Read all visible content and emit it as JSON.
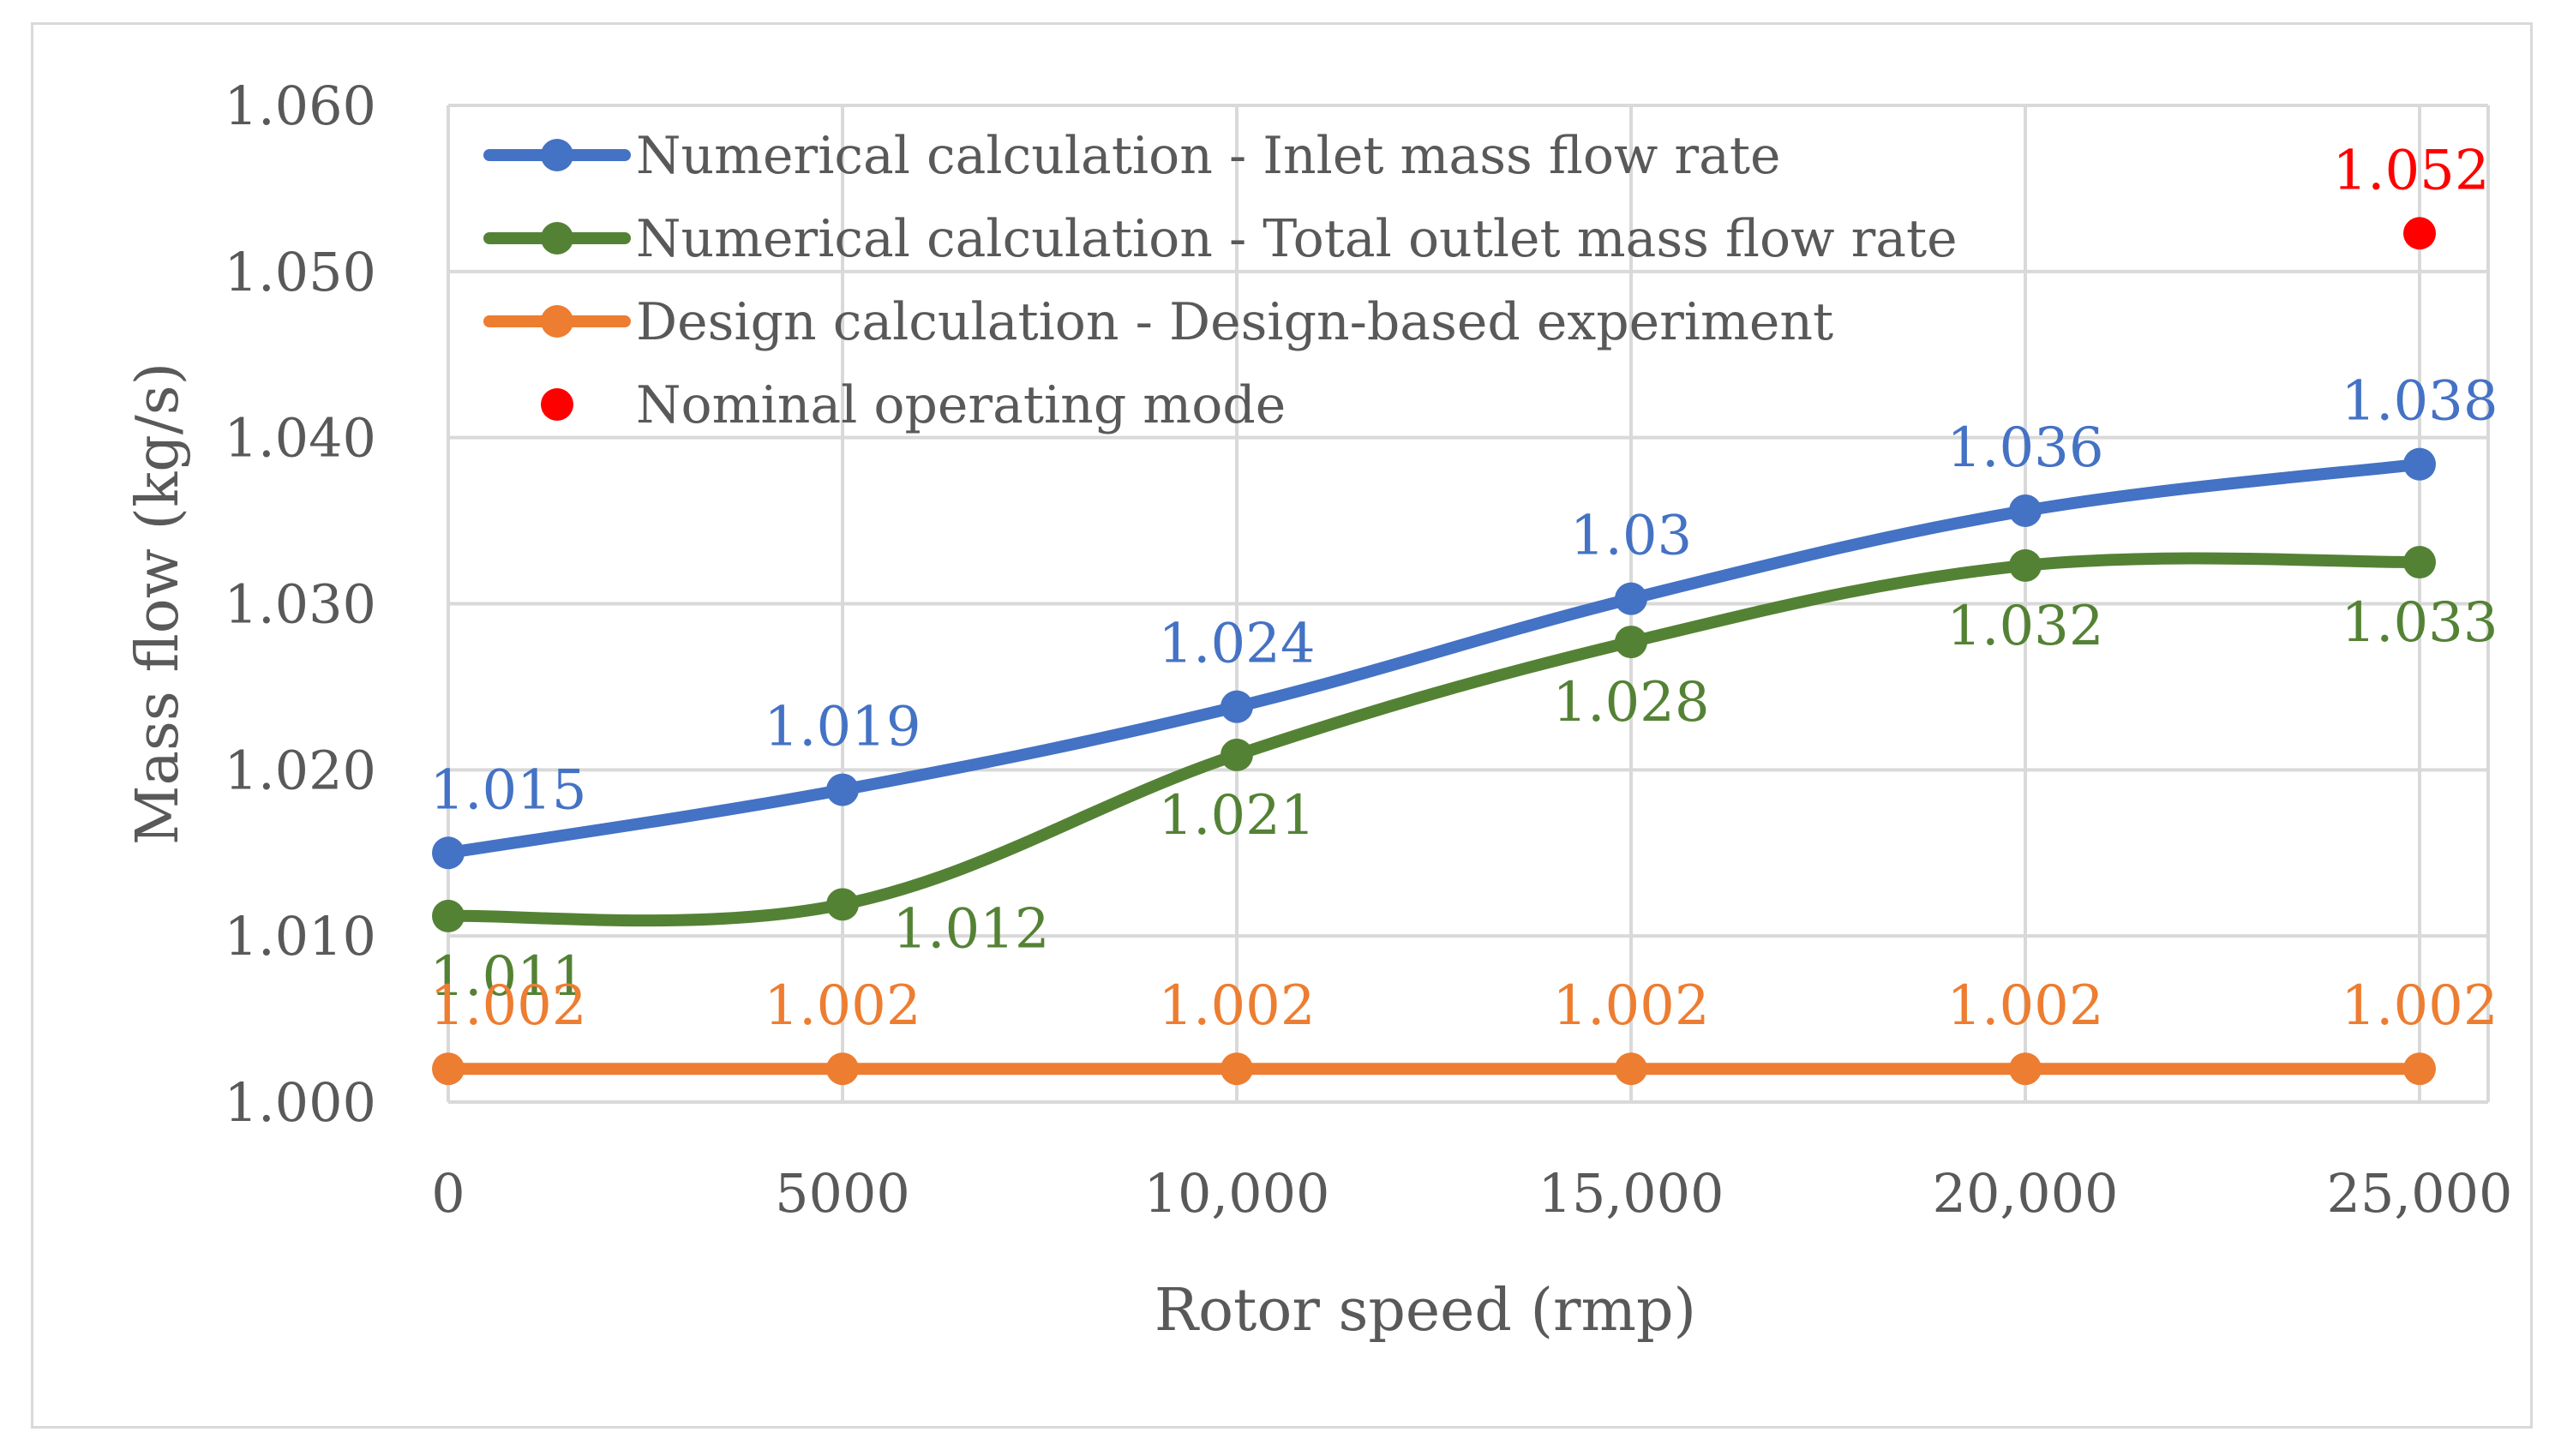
{
  "chart_data": {
    "type": "line",
    "xlabel": "Rotor speed (rmp)",
    "ylabel": "Mass flow (kg/s)",
    "x": [
      0,
      5000,
      10000,
      15000,
      20000,
      25000
    ],
    "x_tick_labels": [
      "0",
      "5000",
      "10,000",
      "15,000",
      "20,000",
      "25,000"
    ],
    "ylim": [
      1.0,
      1.06
    ],
    "y_ticks": [
      1.0,
      1.01,
      1.02,
      1.03,
      1.04,
      1.05,
      1.06
    ],
    "y_tick_labels": [
      "1.000",
      "1.010",
      "1.020",
      "1.030",
      "1.040",
      "1.050",
      "1.060"
    ],
    "grid": true,
    "legend_position": "top-left",
    "series": [
      {
        "name": "Numerical calculation - Inlet mass flow rate",
        "color": "#4472c4",
        "values": [
          1.015,
          1.0188,
          1.0238,
          1.0303,
          1.0356,
          1.0384
        ],
        "labels": [
          "1.015",
          "1.019",
          "1.024",
          "1.03",
          "1.036",
          "1.038"
        ],
        "label_position": "above"
      },
      {
        "name": "Numerical calculation - Total outlet mass flow rate",
        "color": "#548235",
        "values": [
          1.0112,
          1.0119,
          1.0209,
          1.0277,
          1.0323,
          1.0325
        ],
        "labels": [
          "1.011",
          "1.012",
          "1.021",
          "1.028",
          "1.032",
          "1.033"
        ],
        "label_position": "below"
      },
      {
        "name": "Design calculation - Design-based experiment",
        "color": "#ed7d31",
        "values": [
          1.002,
          1.002,
          1.002,
          1.002,
          1.002,
          1.002
        ],
        "labels": [
          "1.002",
          "1.002",
          "1.002",
          "1.002",
          "1.002",
          "1.002"
        ],
        "label_position": "above"
      }
    ],
    "points": [
      {
        "name": "Nominal operating mode",
        "color": "#ff0000",
        "x": 25000,
        "y": 1.0523,
        "label": "1.052"
      }
    ]
  }
}
